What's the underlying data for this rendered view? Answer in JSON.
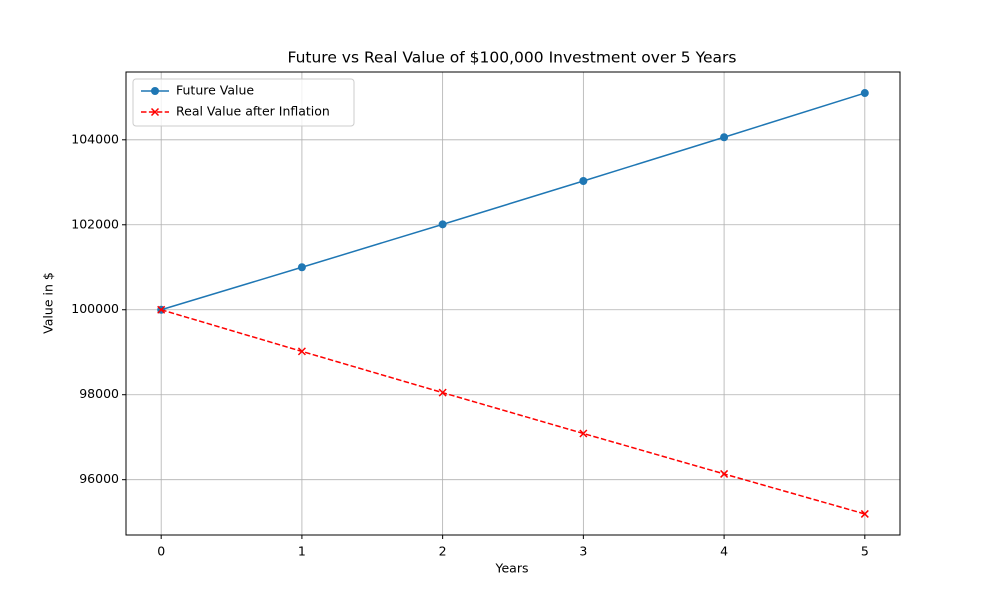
{
  "chart_data": {
    "type": "line",
    "title": "Future vs Real Value of $100,000 Investment over 5 Years",
    "xlabel": "Years",
    "ylabel": "Value in $",
    "x": [
      0,
      1,
      2,
      3,
      4,
      5
    ],
    "series": [
      {
        "name": "Future Value",
        "color": "#1f77b4",
        "marker": "circle",
        "linestyle": "solid",
        "values": [
          100000,
          101000,
          102010,
          103030.1,
          104060.4,
          105101.0
        ]
      },
      {
        "name": "Real Value after Inflation",
        "color": "#ff0000",
        "marker": "x",
        "linestyle": "dashed",
        "values": [
          100000,
          99019.6,
          98048.8,
          97087.5,
          96135.6,
          95193.1
        ]
      }
    ],
    "xlim": [
      -0.25,
      5.25
    ],
    "xticks": [
      0,
      1,
      2,
      3,
      4,
      5
    ],
    "ylim": [
      94698,
      105596
    ],
    "yticks": [
      96000,
      98000,
      100000,
      102000,
      104000
    ],
    "grid": true,
    "legend": "upper-left"
  }
}
